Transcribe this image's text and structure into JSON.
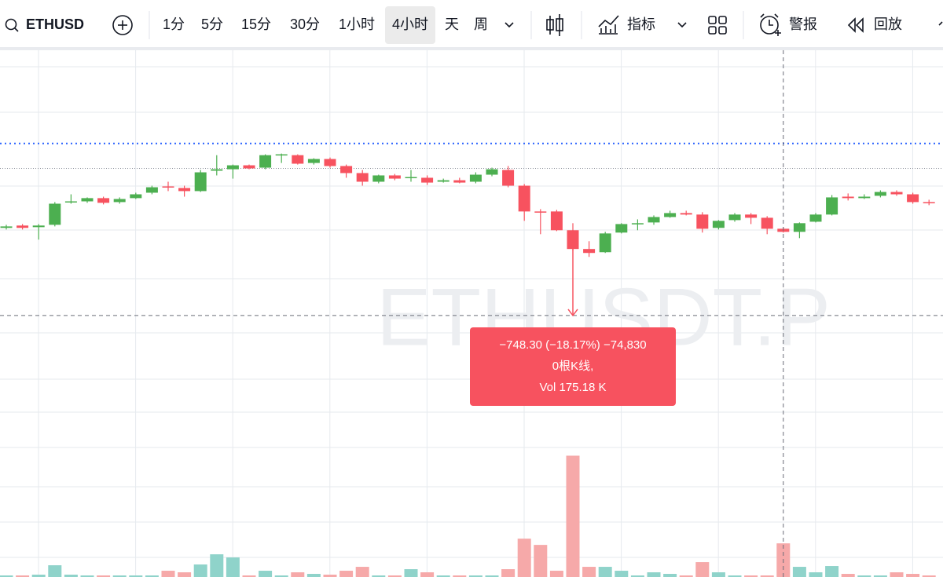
{
  "toolbar": {
    "symbol": "ETHUSD",
    "intervals": [
      "1分",
      "5分",
      "15分",
      "30分",
      "1小时",
      "4小时",
      "天",
      "周"
    ],
    "active_interval": 5,
    "indicators": "指标",
    "alerts": "警报",
    "replay": "回放"
  },
  "chart_data": {
    "type": "candlestick",
    "watermark": "ETHUSDT.P",
    "up_color": "#4caf50",
    "down_color": "#f7525f",
    "up_volume_color": "#8fd3ca",
    "down_volume_color": "#f6a9a9",
    "ylim": [
      1252,
      5519
    ],
    "volume_ylim": [
      0,
      673
    ],
    "open": [
      4080,
      4099,
      4086,
      4105,
      4289,
      4295,
      4321,
      4289,
      4321,
      4365,
      4416,
      4403,
      4378,
      4543,
      4555,
      4587,
      4568,
      4669,
      4669,
      4606,
      4638,
      4581,
      4524,
      4454,
      4505,
      4486,
      4486,
      4454,
      4466,
      4454,
      4511,
      4549,
      4422,
      4213,
      4213,
      4061,
      3909,
      3883,
      4042,
      4111,
      4124,
      4168,
      4200,
      4188,
      4080,
      4143,
      4188,
      4162,
      4073,
      4048,
      4130,
      4188,
      4333,
      4321,
      4340,
      4371,
      4352,
      4289
    ],
    "high": [
      4105,
      4111,
      4111,
      4289,
      4352,
      4327,
      4333,
      4327,
      4365,
      4422,
      4454,
      4422,
      4549,
      4669,
      4593,
      4593,
      4676,
      4682,
      4676,
      4644,
      4650,
      4593,
      4549,
      4511,
      4517,
      4549,
      4505,
      4479,
      4486,
      4530,
      4568,
      4581,
      4435,
      4232,
      4226,
      4118,
      3972,
      4048,
      4118,
      4149,
      4181,
      4219,
      4219,
      4207,
      4143,
      4200,
      4200,
      4175,
      4086,
      4124,
      4200,
      4346,
      4359,
      4352,
      4384,
      4384,
      4365,
      4308
    ],
    "low": [
      4067,
      4067,
      3985,
      4092,
      4276,
      4283,
      4270,
      4276,
      4314,
      4352,
      4378,
      4333,
      4371,
      4505,
      4479,
      4555,
      4555,
      4606,
      4593,
      4593,
      4568,
      4486,
      4422,
      4441,
      4466,
      4454,
      4428,
      4447,
      4441,
      4441,
      4498,
      4409,
      4137,
      4029,
      4054,
      3896,
      3845,
      3877,
      4035,
      4061,
      4105,
      4162,
      4181,
      4042,
      4067,
      4130,
      4111,
      4029,
      4042,
      3997,
      4124,
      4181,
      4302,
      4314,
      4327,
      4340,
      4276,
      4264
    ],
    "close": [
      4092,
      4080,
      4099,
      4276,
      4295,
      4321,
      4283,
      4314,
      4352,
      4409,
      4409,
      4378,
      4530,
      4555,
      4587,
      4562,
      4669,
      4676,
      4600,
      4638,
      4581,
      4524,
      4454,
      4505,
      4479,
      4492,
      4447,
      4466,
      4447,
      4511,
      4555,
      4422,
      4213,
      4207,
      4061,
      3909,
      3877,
      4035,
      4111,
      4118,
      4168,
      4200,
      4188,
      4073,
      4137,
      4188,
      4162,
      4073,
      4048,
      4118,
      4188,
      4327,
      4321,
      4333,
      4371,
      4352,
      4289,
      4283
    ],
    "volume": [
      2,
      2,
      3,
      15,
      3,
      2,
      2,
      2,
      2,
      2,
      8,
      6,
      16,
      29,
      25,
      2,
      8,
      2,
      6,
      4,
      3,
      8,
      13,
      2,
      2,
      10,
      6,
      2,
      2,
      2,
      2,
      10,
      49,
      41,
      8,
      155,
      13,
      13,
      8,
      2,
      6,
      4,
      2,
      19,
      6,
      2,
      2,
      2,
      43,
      13,
      6,
      14,
      4,
      2,
      2,
      6,
      4,
      2
    ],
    "price_line": 4764,
    "previous_close_line": 4562,
    "crosshair_price": 3370,
    "crosshair_index": 48,
    "measure_start_index": 35,
    "measure": {
      "lines": [
        "−748.30 (−18.17%) −74,830",
        "0根K线,",
        "Vol 175.18 K"
      ]
    }
  }
}
